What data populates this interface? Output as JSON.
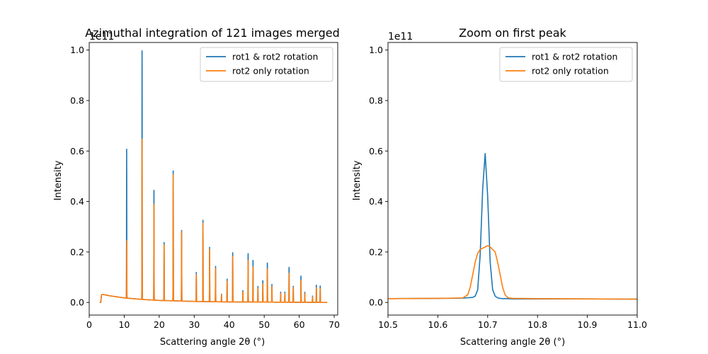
{
  "chart_data": [
    {
      "type": "line",
      "title": "Azimuthal integration of 121 images merged",
      "xlabel": "Scattering angle 2θ (°)",
      "ylabel": "Intensity",
      "y_offset_text": "1e11",
      "xlim": [
        0,
        71
      ],
      "ylim": [
        -0.05,
        1.03
      ],
      "xticks": [
        0,
        10,
        20,
        30,
        40,
        50,
        60,
        70
      ],
      "yticks": [
        0.0,
        0.2,
        0.4,
        0.6,
        0.8,
        1.0
      ],
      "xtick_labels": [
        "0",
        "10",
        "20",
        "30",
        "40",
        "50",
        "60",
        "70"
      ],
      "ytick_labels": [
        "0.0",
        "0.2",
        "0.4",
        "0.6",
        "0.8",
        "1.0"
      ],
      "legend_position": "top-right",
      "x_range": [
        3.0,
        68.0
      ],
      "series": [
        {
          "name": "rot1 & rot2 rotation",
          "color": "#1f77b4",
          "baseline_points": [
            [
              3.0,
              0.0
            ],
            [
              3.3,
              0.0
            ],
            [
              3.5,
              0.03
            ],
            [
              3.8,
              0.032
            ],
            [
              6,
              0.026
            ],
            [
              10,
              0.018
            ],
            [
              15,
              0.012
            ],
            [
              20,
              0.008
            ],
            [
              30,
              0.004
            ],
            [
              40,
              0.002
            ],
            [
              55,
              0.001
            ],
            [
              68,
              0.0
            ]
          ],
          "peaks": [
            [
              10.7,
              0.59
            ],
            [
              15.1,
              0.985
            ],
            [
              18.5,
              0.435
            ],
            [
              21.4,
              0.23
            ],
            [
              24.0,
              0.515
            ],
            [
              26.4,
              0.28
            ],
            [
              30.6,
              0.115
            ],
            [
              32.5,
              0.322
            ],
            [
              34.4,
              0.215
            ],
            [
              36.1,
              0.14
            ],
            [
              37.8,
              0.03
            ],
            [
              39.4,
              0.09
            ],
            [
              41.0,
              0.195
            ],
            [
              43.9,
              0.045
            ],
            [
              45.4,
              0.192
            ],
            [
              46.8,
              0.165
            ],
            [
              48.2,
              0.062
            ],
            [
              49.6,
              0.085
            ],
            [
              50.9,
              0.155
            ],
            [
              52.2,
              0.07
            ],
            [
              54.7,
              0.04
            ],
            [
              55.9,
              0.04
            ],
            [
              57.1,
              0.138
            ],
            [
              58.3,
              0.063
            ],
            [
              60.5,
              0.104
            ],
            [
              61.6,
              0.04
            ],
            [
              63.8,
              0.025
            ],
            [
              64.9,
              0.068
            ],
            [
              66.0,
              0.065
            ]
          ]
        },
        {
          "name": "rot2 only rotation",
          "color": "#ff7f0e",
          "baseline_points": [
            [
              3.0,
              0.0
            ],
            [
              3.3,
              0.0
            ],
            [
              3.5,
              0.03
            ],
            [
              3.8,
              0.032
            ],
            [
              6,
              0.026
            ],
            [
              10,
              0.018
            ],
            [
              15,
              0.012
            ],
            [
              20,
              0.008
            ],
            [
              30,
              0.004
            ],
            [
              40,
              0.002
            ],
            [
              55,
              0.001
            ],
            [
              68,
              0.0
            ]
          ],
          "peaks": [
            [
              10.7,
              0.228
            ],
            [
              15.1,
              0.635
            ],
            [
              18.5,
              0.38
            ],
            [
              21.4,
              0.22
            ],
            [
              24.0,
              0.5
            ],
            [
              26.4,
              0.275
            ],
            [
              30.6,
              0.107
            ],
            [
              32.5,
              0.31
            ],
            [
              34.4,
              0.208
            ],
            [
              36.1,
              0.132
            ],
            [
              37.8,
              0.028
            ],
            [
              39.4,
              0.082
            ],
            [
              41.0,
              0.18
            ],
            [
              43.9,
              0.04
            ],
            [
              45.4,
              0.165
            ],
            [
              46.8,
              0.14
            ],
            [
              48.2,
              0.055
            ],
            [
              49.6,
              0.072
            ],
            [
              50.9,
              0.132
            ],
            [
              52.2,
              0.062
            ],
            [
              54.7,
              0.035
            ],
            [
              55.9,
              0.035
            ],
            [
              57.1,
              0.115
            ],
            [
              58.3,
              0.058
            ],
            [
              60.5,
              0.087
            ],
            [
              61.6,
              0.035
            ],
            [
              63.8,
              0.022
            ],
            [
              64.9,
              0.058
            ],
            [
              66.0,
              0.055
            ]
          ]
        }
      ]
    },
    {
      "type": "line",
      "title": "Zoom on first peak",
      "xlabel": "Scattering angle 2θ (°)",
      "ylabel": "Intensity",
      "y_offset_text": "1e11",
      "xlim": [
        10.5,
        11.0
      ],
      "ylim": [
        -0.05,
        1.03
      ],
      "xticks": [
        10.5,
        10.6,
        10.7,
        10.8,
        10.9,
        11.0
      ],
      "yticks": [
        0.0,
        0.2,
        0.4,
        0.6,
        0.8,
        1.0
      ],
      "xtick_labels": [
        "10.5",
        "10.6",
        "10.7",
        "10.8",
        "10.9",
        "11.0"
      ],
      "ytick_labels": [
        "0.0",
        "0.2",
        "0.4",
        "0.6",
        "0.8",
        "1.0"
      ],
      "legend_position": "top-right",
      "series": [
        {
          "name": "rot1 & rot2 rotation",
          "color": "#1f77b4",
          "x": [
            10.5,
            10.6,
            10.65,
            10.67,
            10.675,
            10.68,
            10.685,
            10.69,
            10.695,
            10.7,
            10.705,
            10.71,
            10.715,
            10.72,
            10.725,
            10.73,
            10.74,
            10.75,
            10.8,
            10.9,
            11.0
          ],
          "values": [
            0.015,
            0.016,
            0.017,
            0.02,
            0.025,
            0.05,
            0.19,
            0.45,
            0.59,
            0.42,
            0.16,
            0.05,
            0.025,
            0.018,
            0.016,
            0.015,
            0.015,
            0.014,
            0.014,
            0.014,
            0.013
          ]
        },
        {
          "name": "rot2 only rotation",
          "color": "#ff7f0e",
          "x": [
            10.5,
            10.6,
            10.65,
            10.66,
            10.665,
            10.67,
            10.675,
            10.68,
            10.685,
            10.69,
            10.695,
            10.7,
            10.705,
            10.71,
            10.715,
            10.72,
            10.725,
            10.73,
            10.735,
            10.74,
            10.745,
            10.75,
            10.8,
            10.9,
            11.0
          ],
          "values": [
            0.015,
            0.016,
            0.018,
            0.03,
            0.06,
            0.11,
            0.16,
            0.195,
            0.21,
            0.215,
            0.22,
            0.225,
            0.22,
            0.21,
            0.2,
            0.16,
            0.11,
            0.06,
            0.03,
            0.02,
            0.017,
            0.016,
            0.015,
            0.014,
            0.013
          ]
        }
      ]
    }
  ]
}
